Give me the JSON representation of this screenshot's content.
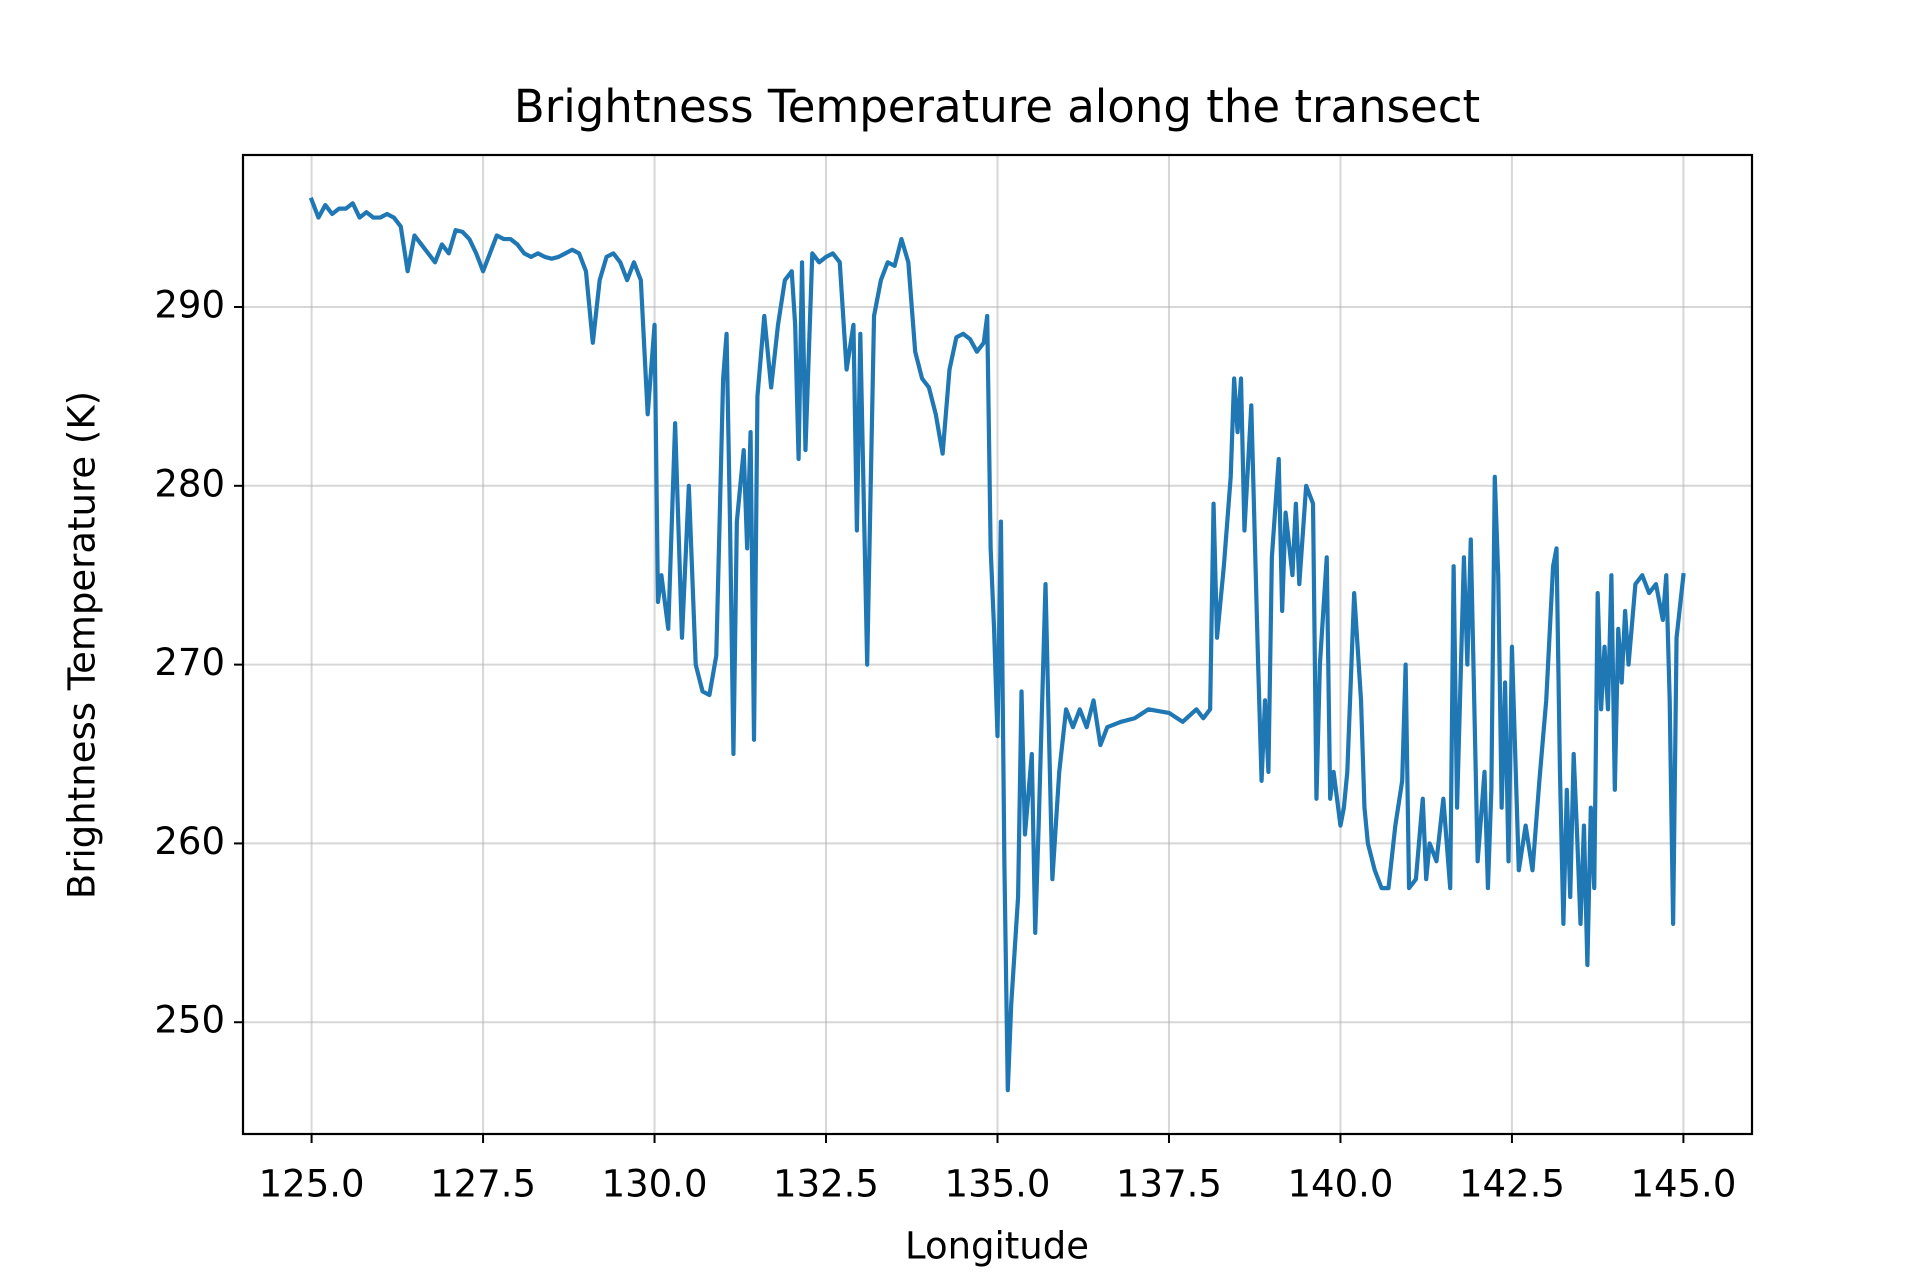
{
  "chart_data": {
    "type": "line",
    "title": "Brightness Temperature along the transect",
    "xlabel": "Longitude",
    "ylabel": "Brightness Temperature (K)",
    "color": "#1f77b4",
    "grid": true,
    "xlim": [
      124.0,
      146.0
    ],
    "ylim": [
      243.75,
      298.5
    ],
    "xticks": [
      {
        "value": 125,
        "label": "125.0"
      },
      {
        "value": 127.5,
        "label": "127.5"
      },
      {
        "value": 130,
        "label": "130.0"
      },
      {
        "value": 132.5,
        "label": "132.5"
      },
      {
        "value": 135,
        "label": "135.0"
      },
      {
        "value": 137.5,
        "label": "137.5"
      },
      {
        "value": 140,
        "label": "140.0"
      },
      {
        "value": 142.5,
        "label": "142.5"
      },
      {
        "value": 145,
        "label": "145.0"
      }
    ],
    "yticks": [
      250,
      260,
      270,
      280,
      290
    ],
    "x": [
      125.0,
      125.1,
      125.2,
      125.3,
      125.4,
      125.5,
      125.6,
      125.7,
      125.8,
      125.9,
      126.0,
      126.1,
      126.2,
      126.3,
      126.4,
      126.5,
      126.6,
      126.7,
      126.8,
      126.9,
      127.0,
      127.1,
      127.2,
      127.3,
      127.4,
      127.5,
      127.6,
      127.7,
      127.8,
      127.9,
      128.0,
      128.1,
      128.2,
      128.3,
      128.4,
      128.5,
      128.6,
      128.7,
      128.8,
      128.9,
      129.0,
      129.1,
      129.2,
      129.3,
      129.4,
      129.5,
      129.6,
      129.7,
      129.8,
      129.9,
      130.0,
      130.05,
      130.1,
      130.2,
      130.3,
      130.4,
      130.5,
      130.6,
      130.7,
      130.8,
      130.9,
      131.0,
      131.05,
      131.1,
      131.15,
      131.2,
      131.3,
      131.35,
      131.4,
      131.45,
      131.5,
      131.6,
      131.7,
      131.8,
      131.9,
      132.0,
      132.05,
      132.1,
      132.15,
      132.2,
      132.3,
      132.4,
      132.5,
      132.6,
      132.7,
      132.8,
      132.9,
      132.95,
      133.0,
      133.1,
      133.2,
      133.3,
      133.4,
      133.5,
      133.6,
      133.7,
      133.8,
      133.9,
      134.0,
      134.1,
      134.2,
      134.3,
      134.4,
      134.5,
      134.6,
      134.7,
      134.8,
      134.85,
      134.9,
      134.95,
      135.0,
      135.05,
      135.1,
      135.15,
      135.2,
      135.3,
      135.35,
      135.4,
      135.5,
      135.55,
      135.6,
      135.7,
      135.8,
      135.9,
      136.0,
      136.1,
      136.2,
      136.3,
      136.4,
      136.5,
      136.6,
      136.8,
      137.0,
      137.2,
      137.5,
      137.7,
      137.9,
      138.0,
      138.1,
      138.15,
      138.2,
      138.3,
      138.4,
      138.45,
      138.5,
      138.55,
      138.6,
      138.7,
      138.8,
      138.85,
      138.9,
      138.95,
      139.0,
      139.1,
      139.15,
      139.2,
      139.3,
      139.35,
      139.4,
      139.5,
      139.6,
      139.65,
      139.7,
      139.8,
      139.85,
      139.9,
      140.0,
      140.05,
      140.1,
      140.2,
      140.3,
      140.35,
      140.4,
      140.5,
      140.6,
      140.7,
      140.8,
      140.9,
      140.95,
      141.0,
      141.1,
      141.2,
      141.25,
      141.3,
      141.4,
      141.5,
      141.6,
      141.65,
      141.7,
      141.8,
      141.85,
      141.9,
      142.0,
      142.1,
      142.15,
      142.2,
      142.25,
      142.3,
      142.35,
      142.4,
      142.45,
      142.5,
      142.6,
      142.7,
      142.8,
      142.9,
      143.0,
      143.1,
      143.15,
      143.2,
      143.25,
      143.3,
      143.35,
      143.4,
      143.45,
      143.5,
      143.55,
      143.6,
      143.65,
      143.7,
      143.75,
      143.8,
      143.85,
      143.9,
      143.95,
      144.0,
      144.05,
      144.1,
      144.15,
      144.2,
      144.3,
      144.4,
      144.5,
      144.6,
      144.7,
      144.75,
      144.8,
      144.85,
      144.9,
      145.0
    ],
    "values": [
      296,
      295,
      295.7,
      295.2,
      295.5,
      295.5,
      295.8,
      295,
      295.3,
      295,
      295,
      295.2,
      295,
      294.5,
      292,
      294,
      293.5,
      293,
      292.5,
      293.5,
      293,
      294.3,
      294.2,
      293.8,
      293,
      292,
      293,
      294,
      293.8,
      293.8,
      293.5,
      293,
      292.8,
      293,
      292.8,
      292.7,
      292.8,
      293,
      293.2,
      293,
      292,
      288,
      291.5,
      292.8,
      293,
      292.5,
      291.5,
      292.5,
      291.5,
      284,
      289,
      273.5,
      275,
      272,
      283.5,
      271.5,
      280,
      270,
      268.5,
      268.3,
      270.5,
      286,
      288.5,
      278,
      265,
      278,
      282,
      276.5,
      283,
      265.8,
      285,
      289.5,
      285.5,
      289,
      291.5,
      292,
      289,
      281.5,
      292.5,
      282,
      293,
      292.5,
      292.8,
      293,
      292.5,
      286.5,
      289,
      277.5,
      288.5,
      270,
      289.5,
      291.5,
      292.5,
      292.3,
      293.8,
      292.5,
      287.5,
      286,
      285.5,
      284,
      281.8,
      286.5,
      288.3,
      288.5,
      288.2,
      287.5,
      288,
      289.5,
      276.5,
      272,
      266,
      278,
      259,
      246.2,
      251,
      257,
      268.5,
      260.5,
      265,
      255,
      261,
      274.5,
      258,
      264,
      267.5,
      266.5,
      267.5,
      266.5,
      268,
      265.5,
      266.5,
      266.8,
      267,
      267.5,
      267.3,
      266.8,
      267.5,
      267,
      267.5,
      279,
      271.5,
      275.5,
      280.5,
      286,
      283,
      286,
      277.5,
      284.5,
      270,
      263.5,
      268,
      264,
      276,
      281.5,
      273,
      278.5,
      275,
      279,
      274.5,
      280,
      279,
      262.5,
      270,
      276,
      262.5,
      264,
      261,
      262,
      264,
      274,
      268,
      262,
      260,
      258.5,
      257.5,
      257.5,
      261,
      263.5,
      270,
      257.5,
      258,
      262.5,
      258,
      260,
      259,
      262.5,
      257.5,
      275.5,
      262,
      276,
      270,
      277,
      259,
      264,
      257.5,
      263,
      280.5,
      275,
      262,
      269,
      259,
      271,
      258.5,
      261,
      258.5,
      263.5,
      268,
      275.5,
      276.5,
      264,
      255.5,
      263,
      257,
      265,
      260.5,
      255.5,
      261,
      253.2,
      262,
      257.5,
      274,
      267.5,
      271,
      267.5,
      275,
      263,
      272,
      269,
      273,
      270,
      274.5,
      275,
      274,
      274.5,
      272.5,
      275,
      268,
      255.5,
      271.5,
      275
    ]
  }
}
